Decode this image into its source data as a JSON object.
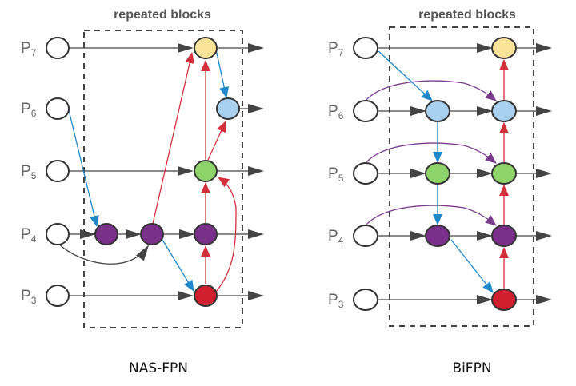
{
  "nas_fpn": {
    "caption": "NAS-FPN",
    "block_label": "repeated blocks",
    "levels": [
      {
        "p": "P",
        "n": "7"
      },
      {
        "p": "P",
        "n": "6"
      },
      {
        "p": "P",
        "n": "5"
      },
      {
        "p": "P",
        "n": "4"
      },
      {
        "p": "P",
        "n": "3"
      }
    ]
  },
  "bifpn": {
    "caption": "BiFPN",
    "block_label": "repeated blocks",
    "levels": [
      {
        "p": "P",
        "n": "7"
      },
      {
        "p": "P",
        "n": "6"
      },
      {
        "p": "P",
        "n": "5"
      },
      {
        "p": "P",
        "n": "4"
      },
      {
        "p": "P",
        "n": "3"
      }
    ]
  },
  "colors": {
    "p7": "#fbe49a",
    "p6": "#a9d1ef",
    "p5": "#8fd46a",
    "p4": "#7a2f8a",
    "p3": "#d0202f",
    "top_down_edge": "#1e88c8",
    "bottom_up_edge": "#d4303c",
    "skip_edge": "#7b3c8c",
    "lateral_edge": "#444444"
  }
}
